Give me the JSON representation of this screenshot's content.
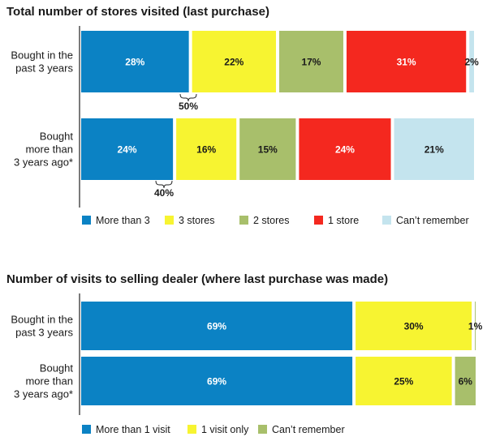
{
  "colors": {
    "blue": "#0b82c4",
    "yellow": "#f7f431",
    "green": "#a8bf6b",
    "red": "#f4281f",
    "lightblue": "#c4e4ee"
  },
  "chart_data": [
    {
      "type": "bar",
      "orientation": "horizontal",
      "stacked": true,
      "title": "Total number of stores visited (last purchase)",
      "categories": [
        [
          "Bought in the",
          "past 3 years"
        ],
        [
          "Bought",
          "more than",
          "3 years ago*"
        ]
      ],
      "series": [
        {
          "name": "More than 3",
          "color": "blue",
          "values": [
            28,
            24
          ]
        },
        {
          "name": "3 stores",
          "color": "yellow",
          "values": [
            22,
            16
          ]
        },
        {
          "name": "2 stores",
          "color": "green",
          "values": [
            17,
            15
          ]
        },
        {
          "name": "1 store",
          "color": "red",
          "values": [
            31,
            24
          ]
        },
        {
          "name": "Can’t remember",
          "color": "lightblue",
          "values": [
            2,
            21
          ]
        }
      ],
      "annotations": [
        "50%",
        "40%"
      ],
      "xlim": [
        0,
        100
      ],
      "legend": "bottom"
    },
    {
      "type": "bar",
      "orientation": "horizontal",
      "stacked": true,
      "title": "Number of visits to selling dealer (where last purchase was made)",
      "categories": [
        [
          "Bought in the",
          "past 3 years"
        ],
        [
          "Bought",
          "more than",
          "3 years ago*"
        ]
      ],
      "series": [
        {
          "name": "More than 1 visit",
          "color": "blue",
          "values": [
            69,
            69
          ]
        },
        {
          "name": "1 visit only",
          "color": "yellow",
          "values": [
            30,
            25
          ]
        },
        {
          "name": "Can’t remember",
          "color": "green",
          "values": [
            1,
            6
          ]
        }
      ],
      "xlim": [
        0,
        100
      ],
      "legend": "bottom"
    }
  ]
}
